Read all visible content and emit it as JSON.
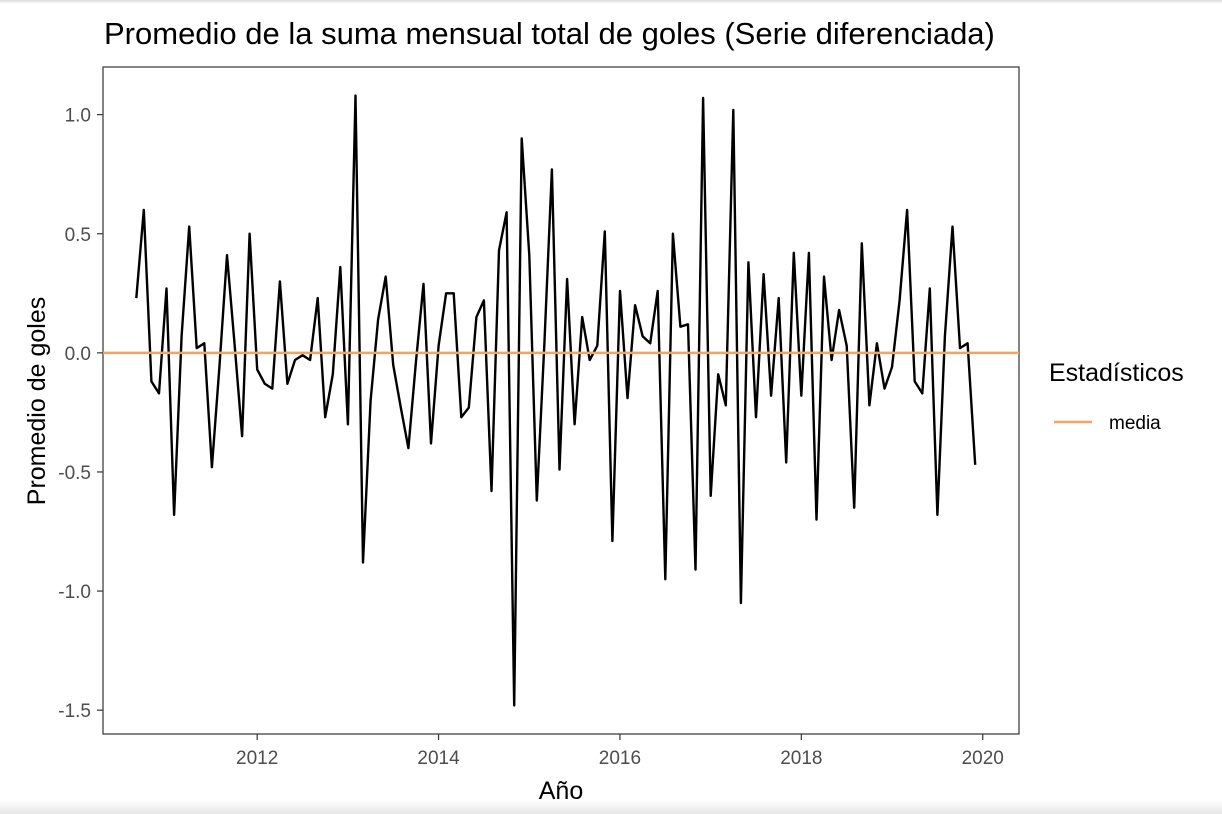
{
  "chart_data": {
    "type": "line",
    "title": "Promedio de la suma mensual total de goles (Serie diferenciada)",
    "xlabel": "Año",
    "ylabel": "Promedio de goles",
    "xlim": [
      2010.3,
      2020.4
    ],
    "ylim": [
      -1.6,
      1.2
    ],
    "x_ticks": [
      2012,
      2014,
      2016,
      2018,
      2020
    ],
    "x_tick_labels": [
      "2012",
      "2014",
      "2016",
      "2018",
      "2020"
    ],
    "y_ticks": [
      1.0,
      0.5,
      0.0,
      -0.5,
      -1.0,
      -1.5
    ],
    "y_tick_labels": [
      "1.0",
      "0.5",
      "0.0",
      "-0.5",
      "-1.0",
      "-1.5"
    ],
    "grid": false,
    "series": [
      {
        "color": "#000000",
        "x_start": 2010.667,
        "x_step": 0.08333,
        "values": [
          0.23,
          0.6,
          -0.12,
          -0.17,
          0.27,
          -0.68,
          0.07,
          0.53,
          0.02,
          0.04,
          -0.48,
          -0.06,
          0.41,
          0.04,
          -0.35,
          0.5,
          -0.07,
          -0.13,
          -0.15,
          0.3,
          -0.13,
          -0.03,
          -0.01,
          -0.03,
          0.23,
          -0.27,
          -0.09,
          0.36,
          -0.3,
          1.08,
          -0.88,
          -0.2,
          0.14,
          0.32,
          -0.05,
          -0.23,
          -0.4,
          -0.04,
          0.29,
          -0.38,
          0.03,
          0.25,
          0.25,
          -0.27,
          -0.23,
          0.15,
          0.22,
          -0.58,
          0.43,
          0.59,
          -1.48,
          0.9,
          0.41,
          -0.62,
          0.04,
          0.77,
          -0.49,
          0.31,
          -0.3,
          0.15,
          -0.03,
          0.03,
          0.51,
          -0.79,
          0.26,
          -0.19,
          0.2,
          0.07,
          0.04,
          0.26,
          -0.95,
          0.5,
          0.11,
          0.12,
          -0.91,
          1.07,
          -0.6,
          -0.09,
          -0.22,
          1.02,
          -1.05,
          0.38,
          -0.27,
          0.33,
          -0.18,
          0.23,
          -0.46,
          0.42,
          -0.18,
          0.42,
          -0.7,
          0.32,
          -0.03,
          0.18,
          0.03,
          -0.65,
          0.46,
          -0.22,
          0.04,
          -0.15,
          -0.06,
          0.22,
          0.6,
          -0.12,
          -0.17,
          0.27,
          -0.68,
          0.07,
          0.53,
          0.02,
          0.04,
          -0.47
        ]
      },
      {
        "name": "media",
        "color": "#f4a460",
        "type": "hline",
        "y": 0.0
      }
    ],
    "legend": {
      "title": "Estadísticos",
      "position": "right",
      "entries": [
        {
          "label": "media",
          "color": "#f4a460"
        }
      ]
    }
  }
}
